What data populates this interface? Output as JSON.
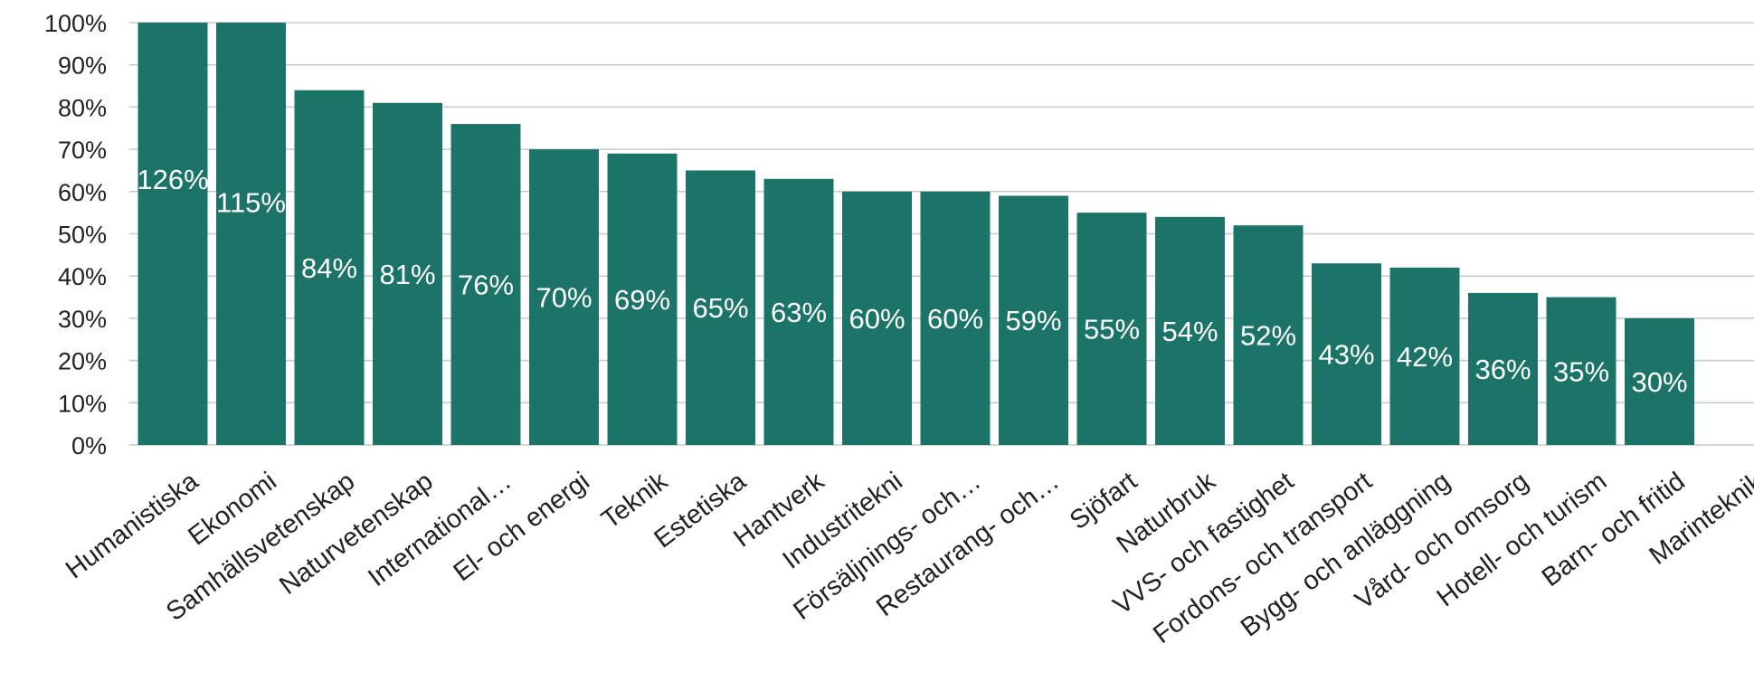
{
  "chart_data": {
    "type": "bar",
    "categories": [
      "Humanistiska",
      "Ekonomi",
      "Samhällsvetenskap",
      "Naturvetenskap",
      "International…",
      "El- och energi",
      "Teknik",
      "Estetiska",
      "Hantverk",
      "Industritekni",
      "Försäljnings- och…",
      "Restaurang- och…",
      "Sjöfart",
      "Naturbruk",
      "VVS- och fastighet",
      "Fordons- och transport",
      "Bygg- och anläggning",
      "Vård- och omsorg",
      "Hotell- och turism",
      "Barn- och fritid",
      "Marinteknik"
    ],
    "values": [
      126,
      115,
      84,
      81,
      76,
      70,
      69,
      65,
      63,
      60,
      60,
      59,
      55,
      54,
      52,
      43,
      42,
      36,
      35,
      30,
      0
    ],
    "data_labels": [
      "126%",
      "115%",
      "84%",
      "81%",
      "76%",
      "70%",
      "69%",
      "65%",
      "63%",
      "60%",
      "60%",
      "59%",
      "55%",
      "54%",
      "52%",
      "43%",
      "42%",
      "36%",
      "35%",
      "30%",
      ""
    ],
    "y_ticks": [
      "0%",
      "10%",
      "20%",
      "30%",
      "40%",
      "50%",
      "60%",
      "70%",
      "80%",
      "90%",
      "100%"
    ],
    "ylim": [
      0,
      100
    ],
    "grid": true,
    "legend": "none",
    "bar_color": "#1c7468",
    "title": "",
    "xlabel": "",
    "ylabel": ""
  }
}
